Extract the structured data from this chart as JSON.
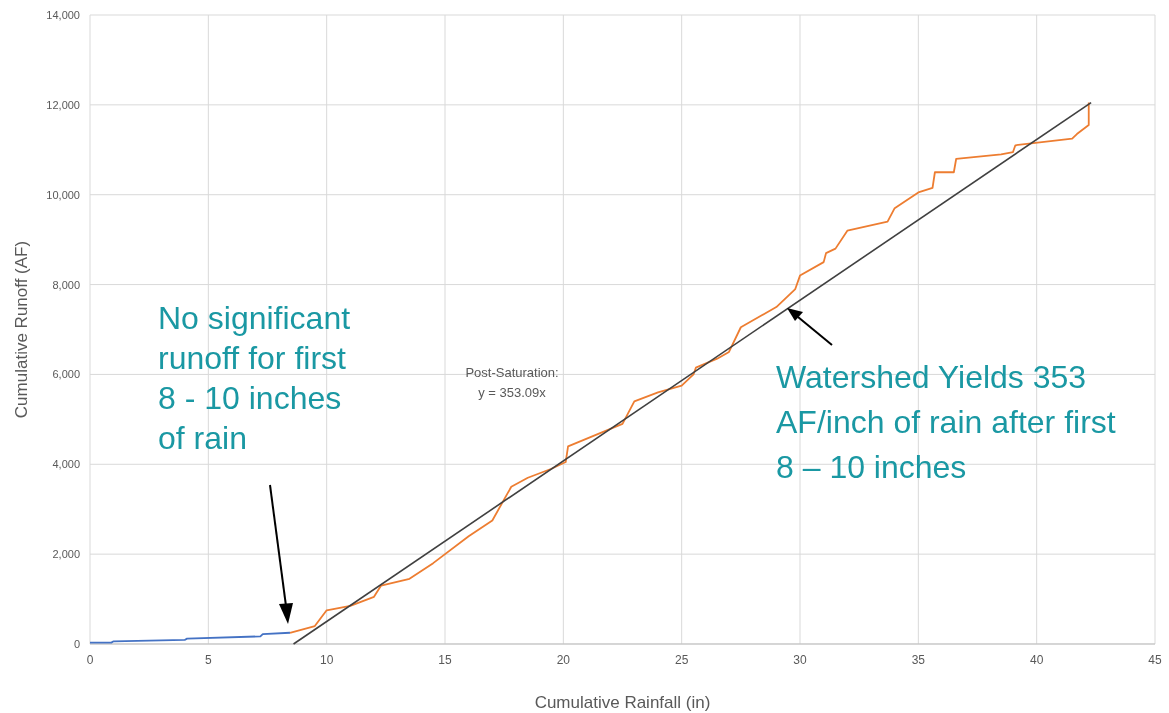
{
  "chart_data": {
    "type": "line",
    "xlabel": "Cumulative Rainfall (in)",
    "ylabel": "Cumulative Runoff (AF)",
    "xlim": [
      0,
      45
    ],
    "xticks": [
      0,
      5,
      10,
      15,
      20,
      25,
      30,
      35,
      40,
      45
    ],
    "ylim": [
      0,
      14000
    ],
    "yticks": [
      {
        "value": 0,
        "label": "0"
      },
      {
        "value": 2000,
        "label": "2,000"
      },
      {
        "value": 4000,
        "label": "4,000"
      },
      {
        "value": 6000,
        "label": "6,000"
      },
      {
        "value": 8000,
        "label": "8,000"
      },
      {
        "value": 10000,
        "label": "10,000"
      },
      {
        "value": 12000,
        "label": "12,000"
      },
      {
        "value": 14000,
        "label": "14,000"
      }
    ],
    "grid": true,
    "marker": "none",
    "series": [
      {
        "color": "#4472c4",
        "x": [
          0,
          0.9,
          1,
          4,
          4.1,
          7.2,
          7.3,
          8.45
        ],
        "values": [
          30,
          30,
          60,
          90,
          120,
          170,
          220,
          250
        ]
      },
      {
        "color": "#ed7d31",
        "x": [
          8.45,
          9.5,
          10,
          11,
          11.5,
          12,
          12.3,
          13.5,
          14.5,
          16,
          17,
          17.8,
          18.5,
          19.5,
          20.1,
          20.2,
          22.5,
          23,
          24,
          25,
          25.5,
          25.6,
          26.5,
          27,
          27.5,
          29,
          29.8,
          30,
          31,
          31.1,
          31.5,
          32,
          33.7,
          34,
          35,
          35.6,
          35.7,
          36.5,
          36.6,
          38.5,
          39,
          39.1,
          41.5,
          41.7,
          42.2,
          42.2
        ],
        "values": [
          250,
          400,
          750,
          850,
          950,
          1050,
          1300,
          1450,
          1800,
          2400,
          2750,
          3500,
          3700,
          3900,
          4050,
          4400,
          4900,
          5400,
          5600,
          5750,
          6000,
          6150,
          6350,
          6500,
          7050,
          7500,
          7900,
          8200,
          8500,
          8700,
          8800,
          9200,
          9400,
          9700,
          10050,
          10150,
          10500,
          10500,
          10800,
          10900,
          10950,
          11100,
          11250,
          11350,
          11550,
          12050
        ]
      },
      {
        "color": "#404040",
        "x": [
          8.6,
          42.3
        ],
        "values": [
          0,
          12050
        ]
      }
    ],
    "annotations": [
      "No significant\nrunoff for first\n8 - 10 inches\nof rain",
      "Post-Saturation:\ny = 353.09x",
      "Watershed Yields 353\nAF/inch of rain after first\n8 – 10 inches"
    ]
  }
}
